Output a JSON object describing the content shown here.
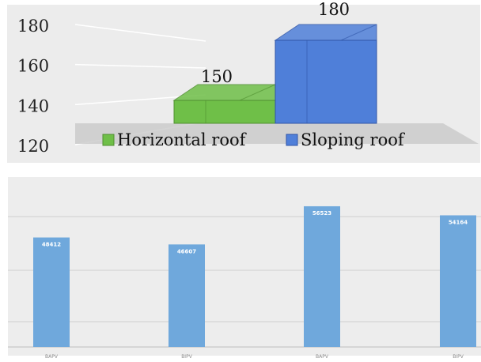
{
  "chart_data": [
    {
      "type": "bar",
      "categories": [
        "Horizontal roof",
        "Sloping roof"
      ],
      "values": [
        150,
        180
      ],
      "data_labels": [
        "150",
        "180"
      ],
      "ylim": [
        120,
        180
      ],
      "yticks": [
        "120",
        "140",
        "160",
        "180"
      ],
      "legend": [
        "Horizontal roof",
        "Sloping roof"
      ],
      "legend_position": "bottom",
      "colors": [
        "#6fbf48",
        "#4f7fd9"
      ],
      "grid": true,
      "style": "3d"
    },
    {
      "type": "bar",
      "categories": [
        "BAPV",
        "BIPV",
        "BAPV",
        "BIPV"
      ],
      "values": [
        48412,
        46607,
        56523,
        54164
      ],
      "data_labels": [
        "48412",
        "46607",
        "56523",
        "54164"
      ],
      "colors": [
        "#6fa8dc"
      ],
      "grid": true
    }
  ]
}
